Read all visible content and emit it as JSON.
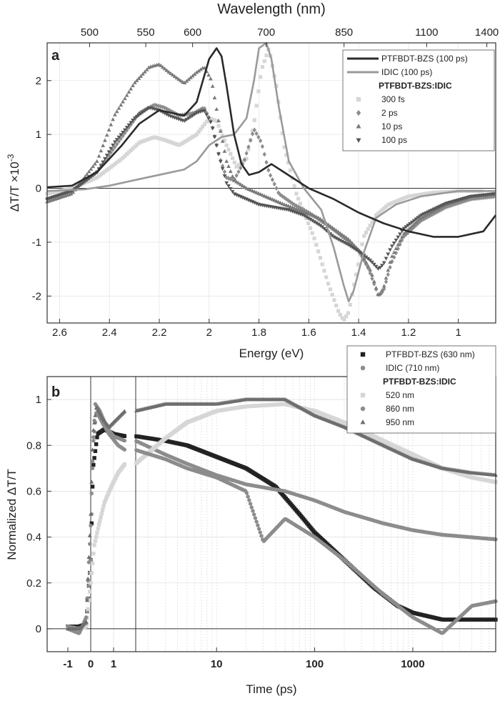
{
  "chart_data": [
    {
      "panel": "a",
      "type": "line",
      "xlabel": "Energy (eV)",
      "ylabel_main": "ΔT/T ×10",
      "ylabel_exp": "-3",
      "top_axis_label": "Wavelength (nm)",
      "x_reversed": true,
      "xlim": [
        2.65,
        0.85
      ],
      "ylim": [
        -2.5,
        2.7
      ],
      "x_ticks": [
        "2.6",
        "2.4",
        "2.2",
        "2",
        "1.8",
        "1.6",
        "1.4",
        "1.2",
        "1"
      ],
      "x_tick_values": [
        2.6,
        2.4,
        2.2,
        2.0,
        1.8,
        1.6,
        1.4,
        1.2,
        1.0
      ],
      "y_ticks": [
        "-2",
        "-1",
        "0",
        "1",
        "2"
      ],
      "y_tick_values": [
        -2,
        -1,
        0,
        1,
        2
      ],
      "top_ticks": [
        "500",
        "550",
        "600",
        "700",
        "850",
        "1100",
        "1400"
      ],
      "top_tick_values": [
        500,
        550,
        600,
        700,
        850,
        1100,
        1400
      ],
      "legend_placement": "top-right",
      "legend": [
        {
          "label": "PTFBDT-BZS (100 ps)",
          "style": "line",
          "color": "#2a2a2a"
        },
        {
          "label": "IDIC (100 ps)",
          "style": "line",
          "color": "#9a9a9a"
        },
        {
          "label": "PTFBDT-BZS:IDIC",
          "style": "header"
        },
        {
          "label": "300 fs",
          "style": "square",
          "color": "#d6d6d6"
        },
        {
          "label": "2 ps",
          "style": "diamond",
          "color": "#8c8c8c"
        },
        {
          "label": "10 ps",
          "style": "triangle-up",
          "color": "#7a7a7a"
        },
        {
          "label": "100 ps",
          "style": "triangle-down",
          "color": "#555555"
        }
      ],
      "series": [
        {
          "name": "PTFBDT-BZS (100 ps)",
          "style": "line",
          "color": "#2a2a2a",
          "x": [
            2.65,
            2.55,
            2.45,
            2.35,
            2.28,
            2.2,
            2.15,
            2.1,
            2.05,
            2.0,
            1.97,
            1.95,
            1.93,
            1.9,
            1.87,
            1.84,
            1.8,
            1.75,
            1.7,
            1.6,
            1.5,
            1.4,
            1.3,
            1.2,
            1.1,
            1.0,
            0.9,
            0.85
          ],
          "y": [
            0.02,
            0.05,
            0.3,
            0.8,
            1.2,
            1.45,
            1.4,
            1.35,
            1.6,
            2.4,
            2.6,
            2.45,
            1.9,
            1.0,
            0.45,
            0.25,
            0.3,
            0.45,
            0.3,
            0.0,
            -0.2,
            -0.45,
            -0.65,
            -0.8,
            -0.9,
            -0.9,
            -0.8,
            -0.5
          ]
        },
        {
          "name": "IDIC (100 ps)",
          "style": "line",
          "color": "#9a9a9a",
          "x": [
            2.65,
            2.5,
            2.4,
            2.3,
            2.2,
            2.1,
            2.05,
            2.0,
            1.95,
            1.9,
            1.85,
            1.82,
            1.8,
            1.77,
            1.75,
            1.72,
            1.68,
            1.62,
            1.55,
            1.5,
            1.46,
            1.44,
            1.42,
            1.38,
            1.33,
            1.25,
            1.15,
            1.0,
            0.85
          ],
          "y": [
            -0.05,
            -0.02,
            0.05,
            0.15,
            0.25,
            0.35,
            0.5,
            0.8,
            0.95,
            1.0,
            1.3,
            2.0,
            2.6,
            2.7,
            2.4,
            1.5,
            0.5,
            0.0,
            -0.4,
            -1.1,
            -1.8,
            -2.1,
            -1.9,
            -1.2,
            -0.55,
            -0.3,
            -0.15,
            -0.05,
            -0.05
          ]
        },
        {
          "name": "300 fs",
          "style": "square",
          "color": "#d6d6d6",
          "x": [
            2.65,
            2.55,
            2.45,
            2.35,
            2.28,
            2.22,
            2.18,
            2.12,
            2.05,
            2.0,
            1.97,
            1.93,
            1.89,
            1.85,
            1.82,
            1.79,
            1.76,
            1.73,
            1.7,
            1.65,
            1.58,
            1.52,
            1.48,
            1.46,
            1.44,
            1.41,
            1.38,
            1.33,
            1.28,
            1.2,
            1.1,
            1.0,
            0.9
          ],
          "y": [
            -0.1,
            0.0,
            0.2,
            0.55,
            0.85,
            0.95,
            0.9,
            0.8,
            1.0,
            1.3,
            1.25,
            0.8,
            0.4,
            0.55,
            1.2,
            2.2,
            2.6,
            1.9,
            0.8,
            -0.1,
            -0.9,
            -1.8,
            -2.3,
            -2.45,
            -2.3,
            -1.6,
            -0.9,
            -0.5,
            -0.3,
            -0.15,
            -0.08,
            -0.05,
            -0.05
          ]
        },
        {
          "name": "2 ps",
          "style": "diamond",
          "color": "#8c8c8c",
          "x": [
            2.65,
            2.55,
            2.45,
            2.35,
            2.28,
            2.22,
            2.18,
            2.12,
            2.06,
            2.02,
            1.99,
            1.96,
            1.93,
            1.9,
            1.86,
            1.82,
            1.79,
            1.76,
            1.72,
            1.66,
            1.6,
            1.52,
            1.45,
            1.4,
            1.36,
            1.32,
            1.3,
            1.27,
            1.22,
            1.15,
            1.05,
            0.95,
            0.85
          ],
          "y": [
            -0.2,
            -0.05,
            0.3,
            0.95,
            1.4,
            1.55,
            1.5,
            1.35,
            1.4,
            1.5,
            1.2,
            0.6,
            0.2,
            0.15,
            0.5,
            1.1,
            0.85,
            0.3,
            -0.1,
            -0.3,
            -0.45,
            -0.7,
            -0.95,
            -1.15,
            -1.5,
            -2.0,
            -1.9,
            -1.4,
            -0.9,
            -0.6,
            -0.35,
            -0.2,
            -0.15
          ]
        },
        {
          "name": "10 ps",
          "style": "triangle-up",
          "color": "#7a7a7a",
          "x": [
            2.65,
            2.55,
            2.45,
            2.38,
            2.3,
            2.24,
            2.2,
            2.16,
            2.1,
            2.05,
            2.02,
            1.99,
            1.96,
            1.93,
            1.9,
            1.85,
            1.8,
            1.75,
            1.7,
            1.64,
            1.56,
            1.5,
            1.44,
            1.39,
            1.35,
            1.32,
            1.3,
            1.27,
            1.22,
            1.15,
            1.05,
            0.95,
            0.85
          ],
          "y": [
            -0.25,
            -0.1,
            0.5,
            1.35,
            1.95,
            2.25,
            2.3,
            2.15,
            1.95,
            2.15,
            2.25,
            2.0,
            1.2,
            0.5,
            0.15,
            0.0,
            -0.1,
            -0.2,
            -0.3,
            -0.4,
            -0.55,
            -0.75,
            -0.95,
            -1.2,
            -1.55,
            -2.0,
            -1.85,
            -1.3,
            -0.85,
            -0.55,
            -0.3,
            -0.15,
            -0.1
          ]
        },
        {
          "name": "100 ps",
          "style": "triangle-down",
          "color": "#555555",
          "x": [
            2.65,
            2.55,
            2.45,
            2.38,
            2.3,
            2.24,
            2.2,
            2.16,
            2.1,
            2.05,
            2.02,
            1.99,
            1.96,
            1.93,
            1.9,
            1.85,
            1.8,
            1.74,
            1.68,
            1.62,
            1.55,
            1.5,
            1.44,
            1.39,
            1.35,
            1.32,
            1.3,
            1.27,
            1.22,
            1.15,
            1.05,
            0.95,
            0.85
          ],
          "y": [
            -0.2,
            -0.05,
            0.3,
            0.85,
            1.3,
            1.5,
            1.45,
            1.35,
            1.25,
            1.4,
            1.45,
            1.2,
            0.6,
            0.1,
            -0.1,
            -0.2,
            -0.3,
            -0.35,
            -0.4,
            -0.5,
            -0.7,
            -0.9,
            -1.05,
            -1.2,
            -1.35,
            -1.5,
            -1.4,
            -1.1,
            -0.75,
            -0.5,
            -0.28,
            -0.15,
            -0.1
          ]
        }
      ]
    },
    {
      "panel": "b",
      "type": "scatter",
      "xlabel": "Time (ps)",
      "ylabel": "Normalized ΔT/T",
      "x_scale": "linear from -1 to 1.5, logarithmic from 1.5 to 7000",
      "xlim": [
        -1.1,
        7000
      ],
      "ylim": [
        -0.1,
        1.1
      ],
      "x_ticks": [
        "-1",
        "0",
        "1",
        "10",
        "100",
        "1000"
      ],
      "x_tick_values": [
        -1,
        0,
        1,
        10,
        100,
        1000
      ],
      "y_ticks": [
        "0",
        "0.2",
        "0.4",
        "0.6",
        "0.8",
        "1"
      ],
      "y_tick_values": [
        0,
        0.2,
        0.4,
        0.6,
        0.8,
        1.0
      ],
      "legend_placement": "top-right",
      "legend": [
        {
          "label": "PTFBDT-BZS (630 nm)",
          "style": "square",
          "color": "#222222"
        },
        {
          "label": "IDIC (710 nm)",
          "style": "circle",
          "color": "#8c8c8c"
        },
        {
          "label": "PTFBDT-BZS:IDIC",
          "style": "header"
        },
        {
          "label": "520 nm",
          "style": "square",
          "color": "#d6d6d6"
        },
        {
          "label": "860 nm",
          "style": "circle",
          "color": "#8c8c8c"
        },
        {
          "label": "950 nm",
          "style": "triangle-up",
          "color": "#6e6e6e"
        }
      ],
      "series": [
        {
          "name": "PTFBDT-BZS (630 nm)",
          "style": "square",
          "color": "#222222",
          "x": [
            -1,
            -0.5,
            -0.2,
            0,
            0.1,
            0.3,
            0.6,
            1,
            1.5,
            3,
            5,
            10,
            20,
            40,
            70,
            100,
            200,
            400,
            700,
            1000,
            2000,
            4000,
            7000
          ],
          "y": [
            0.01,
            0.01,
            0.02,
            0.3,
            0.7,
            0.85,
            0.87,
            0.85,
            0.84,
            0.82,
            0.8,
            0.75,
            0.7,
            0.62,
            0.5,
            0.42,
            0.3,
            0.18,
            0.1,
            0.07,
            0.04,
            0.04,
            0.04
          ]
        },
        {
          "name": "IDIC (710 nm)",
          "style": "circle",
          "color": "#8c8c8c",
          "x": [
            -1,
            -0.5,
            -0.2,
            0,
            0.1,
            0.2,
            0.4,
            0.7,
            1,
            1.5,
            3,
            5,
            10,
            20,
            50,
            100,
            200,
            500,
            1000,
            2000,
            7000
          ],
          "y": [
            0.01,
            0.0,
            0.02,
            0.3,
            0.8,
            0.98,
            0.95,
            0.88,
            0.84,
            0.82,
            0.76,
            0.72,
            0.67,
            0.63,
            0.6,
            0.56,
            0.51,
            0.46,
            0.43,
            0.41,
            0.39
          ]
        },
        {
          "name": "520 nm",
          "style": "square",
          "color": "#d6d6d6",
          "x": [
            -1,
            -0.5,
            -0.2,
            0,
            0.15,
            0.35,
            0.6,
            0.9,
            1.2,
            1.5,
            3,
            5,
            10,
            20,
            50,
            100,
            200,
            500,
            1000,
            2000,
            4000,
            7000
          ],
          "y": [
            0.0,
            0.0,
            0.01,
            0.2,
            0.36,
            0.45,
            0.55,
            0.62,
            0.68,
            0.72,
            0.83,
            0.9,
            0.95,
            0.97,
            0.98,
            0.95,
            0.9,
            0.82,
            0.76,
            0.7,
            0.66,
            0.64
          ]
        },
        {
          "name": "860 nm",
          "style": "circle",
          "color": "#8c8c8c",
          "x": [
            -1,
            -0.5,
            -0.2,
            0,
            0.1,
            0.25,
            0.5,
            0.8,
            1.2,
            1.5,
            3,
            5,
            10,
            20,
            30,
            50,
            100,
            200,
            500,
            1000,
            2000,
            4000,
            7000
          ],
          "y": [
            0.0,
            -0.02,
            0.05,
            0.45,
            0.8,
            0.95,
            0.9,
            0.85,
            0.8,
            0.78,
            0.74,
            0.7,
            0.66,
            0.6,
            0.38,
            0.48,
            0.4,
            0.3,
            0.15,
            0.05,
            -0.02,
            0.1,
            0.12
          ]
        },
        {
          "name": "950 nm",
          "style": "triangle-up",
          "color": "#6e6e6e",
          "x": [
            -1,
            -0.5,
            -0.2,
            0,
            0.1,
            0.25,
            0.5,
            0.8,
            1.2,
            1.5,
            3,
            5,
            10,
            20,
            50,
            100,
            200,
            500,
            1000,
            2000,
            4000,
            7000
          ],
          "y": [
            0.0,
            0.0,
            0.03,
            0.5,
            0.85,
            0.97,
            0.92,
            0.88,
            0.92,
            0.95,
            0.98,
            0.98,
            0.98,
            1.0,
            1.0,
            0.93,
            0.88,
            0.8,
            0.74,
            0.7,
            0.68,
            0.67
          ]
        }
      ]
    }
  ]
}
